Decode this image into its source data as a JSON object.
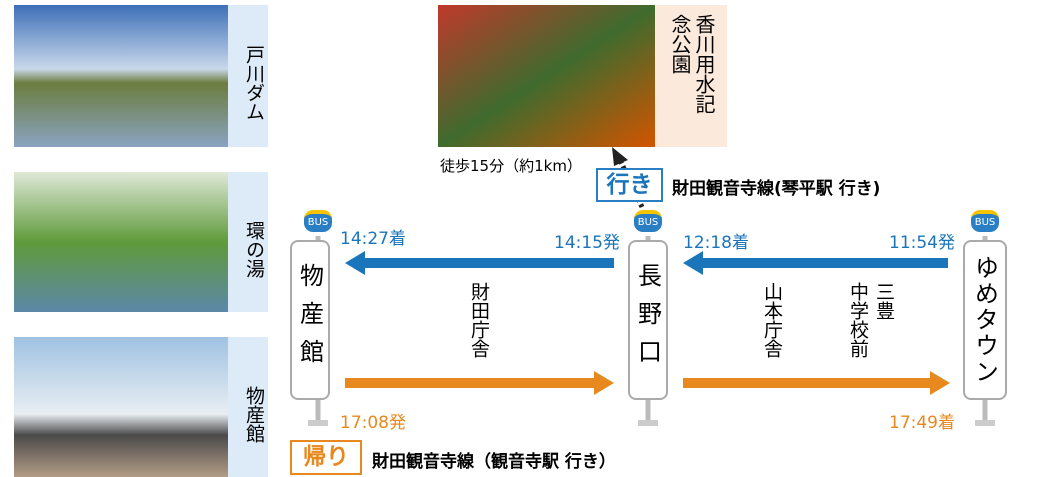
{
  "photos": [
    {
      "label": "戸川ダム"
    },
    {
      "label": "環の湯"
    },
    {
      "label": "物産館"
    }
  ],
  "spot": {
    "label": "香川用水記念公園",
    "walk": "徒歩15分（約1km）"
  },
  "outbound": {
    "tag": "行き",
    "route": "財田観音寺線(琴平駅 行き)"
  },
  "return": {
    "tag": "帰り",
    "route": "財田観音寺線（観音寺駅 行き）"
  },
  "bus_icon": "BUS",
  "stops": [
    {
      "name": "物産館"
    },
    {
      "name": "長野口"
    },
    {
      "name": "ゆめタウン"
    }
  ],
  "times": {
    "bussan_arrive": "14:27着",
    "nagano_depart": "14:15発",
    "nagano_arrive": "12:18着",
    "yume_depart": "11:54発",
    "bussan_depart": "17:08発",
    "yume_arrive": "17:49着"
  },
  "via": {
    "left": "財田庁舎",
    "right_1": "山本庁舎",
    "right_2": "中学校前",
    "right_3": "三豊"
  }
}
